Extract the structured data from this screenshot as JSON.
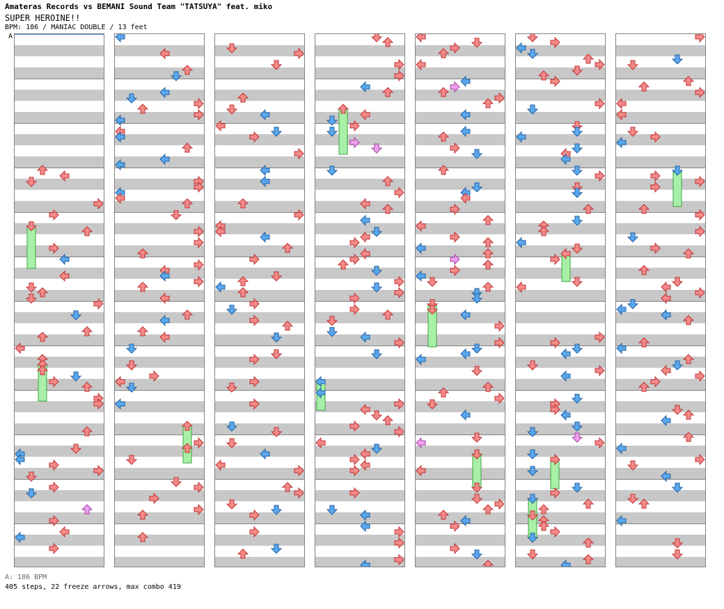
{
  "header": {
    "artist_line": "Amateras Records vs BEMANI Sound Team \"TATSUYA\" feat. miko",
    "title": "SUPER HEROINE!!",
    "meta": "BPM: 186 / MANIAC DOUBLE / 13 feet"
  },
  "chart": {
    "marker": "A",
    "columns": 7,
    "measures_per_column": 12
  },
  "footer": {
    "bpm_note": "A: 186 BPM",
    "stats": "405 steps, 22 freeze arrows, max combo 419"
  },
  "colors": {
    "red_arrow": "#f48a8a",
    "blue_arrow": "#5aa8f0",
    "pink_arrow": "#f0a0f0",
    "freeze": "#a8f0a8"
  }
}
